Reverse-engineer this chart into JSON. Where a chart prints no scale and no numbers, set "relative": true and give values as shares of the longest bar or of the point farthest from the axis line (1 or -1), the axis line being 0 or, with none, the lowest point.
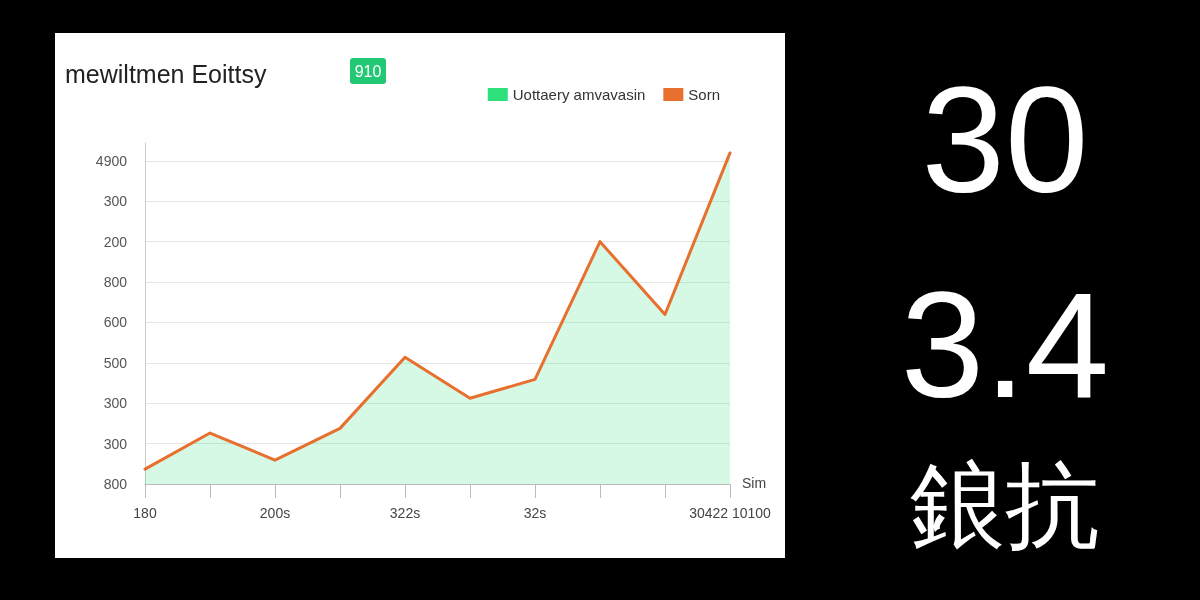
{
  "chart_data": {
    "type": "area",
    "title": "mewiltmen Eoittsy",
    "xlabel": "Sim",
    "relative": true,
    "annotations": [
      "910",
      "30",
      "3.4",
      "鋃抗",
      "800",
      "300",
      "300",
      "500",
      "600",
      "800",
      "200",
      "300",
      "4900"
    ],
    "categories": [
      "180",
      null,
      "200s",
      null,
      "322s",
      null,
      "32s",
      null,
      null,
      "30422 10100"
    ],
    "series": [
      {
        "name": "Uottaery amvavasin",
        "type": "area",
        "color": "#2ee07a",
        "values": [
          0.045,
          0.154,
          0.072,
          0.168,
          0.383,
          0.259,
          0.316,
          0.732,
          0.512,
          1
        ]
      },
      {
        "name": "Sorn",
        "type": "line",
        "color": "#e8702f",
        "values": [
          0.045,
          0.154,
          0.072,
          0.168,
          0.383,
          0.259,
          0.316,
          0.732,
          0.512,
          1
        ]
      }
    ],
    "grid": "y",
    "legend": "top right",
    "marker": "none",
    "line_style": "solid"
  }
}
